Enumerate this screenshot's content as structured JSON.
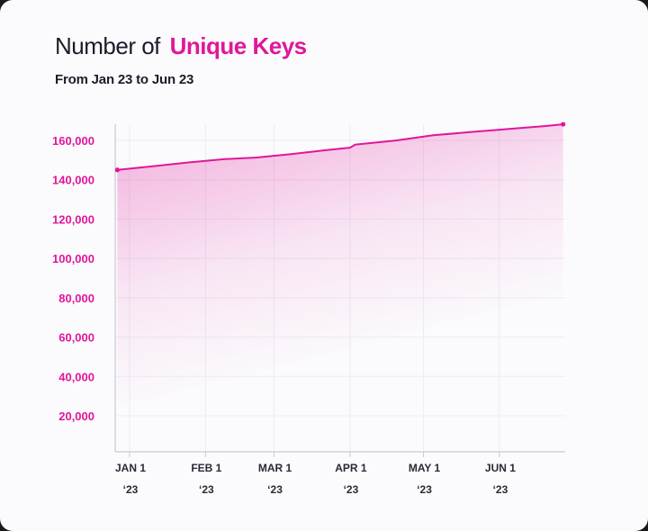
{
  "title": {
    "plain": "Number of",
    "accent": "Unique Keys"
  },
  "subtitle": "From Jan 23 to Jun 23",
  "colors": {
    "accent": "#e0179a",
    "text": "#1c1c2a",
    "grid": "#ececf2",
    "axis": "#c9c9d3"
  },
  "chart_data": {
    "type": "area",
    "title": "Number of Unique Keys",
    "subtitle": "From Jan 23 to Jun 23",
    "xlabel": "",
    "ylabel": "",
    "x_ticks": [
      {
        "date": "2023-01-01",
        "label": "JAN 1",
        "sublabel": "‘23"
      },
      {
        "date": "2023-02-01",
        "label": "FEB 1",
        "sublabel": "‘23"
      },
      {
        "date": "2023-03-01",
        "label": "MAR 1",
        "sublabel": "‘23"
      },
      {
        "date": "2023-04-01",
        "label": "APR 1",
        "sublabel": "‘23"
      },
      {
        "date": "2023-05-01",
        "label": "MAY 1",
        "sublabel": "‘23"
      },
      {
        "date": "2023-06-01",
        "label": "JUN 1",
        "sublabel": "‘23"
      }
    ],
    "y_ticks": [
      20000,
      40000,
      60000,
      80000,
      100000,
      120000,
      140000,
      160000
    ],
    "y_tick_labels": [
      "20,000",
      "40,000",
      "60,000",
      "80,000",
      "100,000",
      "120,000",
      "140,000",
      "160,000"
    ],
    "ylim": [
      0,
      167000
    ],
    "grid": true,
    "series": [
      {
        "points": [
          {
            "x": "2022-12-27",
            "y": 145000
          },
          {
            "x": "2023-01-10",
            "y": 146800
          },
          {
            "x": "2023-01-25",
            "y": 148800
          },
          {
            "x": "2023-02-09",
            "y": 150500
          },
          {
            "x": "2023-02-22",
            "y": 151300
          },
          {
            "x": "2023-03-08",
            "y": 153000
          },
          {
            "x": "2023-03-22",
            "y": 155000
          },
          {
            "x": "2023-04-01",
            "y": 156300
          },
          {
            "x": "2023-04-03",
            "y": 157800
          },
          {
            "x": "2023-04-20",
            "y": 160000
          },
          {
            "x": "2023-05-05",
            "y": 162600
          },
          {
            "x": "2023-05-20",
            "y": 164200
          },
          {
            "x": "2023-06-05",
            "y": 165800
          },
          {
            "x": "2023-06-20",
            "y": 167300
          },
          {
            "x": "2023-06-27",
            "y": 168200
          }
        ]
      }
    ]
  }
}
